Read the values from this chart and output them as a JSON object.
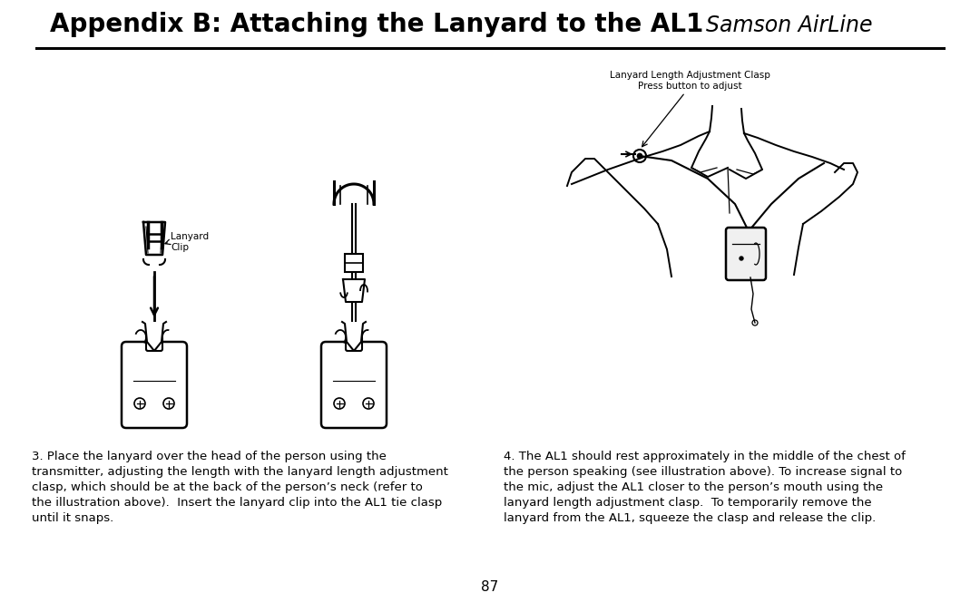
{
  "title": "Appendix B: Attaching the Lanyard to the AL1",
  "subtitle": "Samson AirLine",
  "page_number": "87",
  "bg": "#ffffff",
  "tc": "#000000",
  "left_body": "3. Place the lanyard over the head of the person using the\ntransmitter, adjusting the length with the lanyard length adjustment\nclasp, which should be at the back of the person’s neck (refer to\nthe illustration above).  Insert the lanyard clip into the AL1 tie clasp\nuntil it snaps.",
  "right_body": "4. The AL1 should rest approximately in the middle of the chest of\nthe person speaking (see illustration above). To increase signal to\nthe mic, adjust the AL1 closer to the person’s mouth using the\nlanyard length adjustment clasp.  To temporarily remove the\nlanyard from the AL1, squeeze the clasp and release the clip.",
  "label_lanyard_clip": "Lanyard\nClip",
  "label_length_adjust": "Lanyard Length Adjustment Clasp\nPress button to adjust"
}
